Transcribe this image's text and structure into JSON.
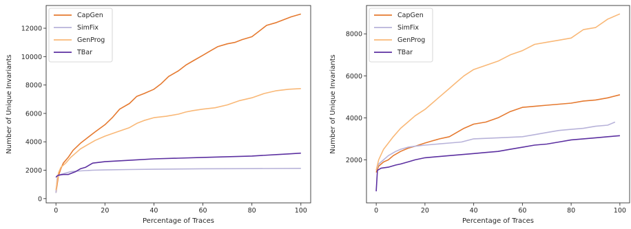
{
  "chart_data": [
    {
      "type": "line",
      "xlabel": "Percentage of Traces",
      "ylabel": "Number of Unique Invariants",
      "xlim": [
        -4,
        104
      ],
      "ylim": [
        -300,
        13600
      ],
      "xticks": [
        0,
        20,
        40,
        60,
        80,
        100
      ],
      "yticks": [
        0,
        2000,
        4000,
        6000,
        8000,
        10000,
        12000
      ],
      "legend_position": "upper-left",
      "grid": false,
      "series": [
        {
          "name": "CapGen",
          "color": "#e5792f",
          "x": [
            0,
            1,
            2,
            3,
            5,
            7,
            10,
            13,
            16,
            20,
            23,
            26,
            30,
            33,
            36,
            40,
            43,
            46,
            50,
            53,
            56,
            60,
            63,
            66,
            70,
            73,
            76,
            80,
            83,
            86,
            90,
            93,
            96,
            100
          ],
          "y": [
            400,
            1600,
            2100,
            2500,
            2900,
            3400,
            3900,
            4300,
            4700,
            5200,
            5700,
            6300,
            6700,
            7200,
            7400,
            7700,
            8100,
            8600,
            9000,
            9400,
            9700,
            10100,
            10400,
            10700,
            10900,
            11000,
            11200,
            11400,
            11800,
            12200,
            12400,
            12600,
            12800,
            13000
          ]
        },
        {
          "name": "SimFix",
          "color": "#b7b2d9",
          "x": [
            0,
            0.5,
            1,
            2,
            4,
            6,
            10,
            15,
            20,
            30,
            40,
            60,
            80,
            100
          ],
          "y": [
            400,
            1400,
            1600,
            1700,
            1800,
            1900,
            1950,
            2000,
            2020,
            2050,
            2070,
            2100,
            2110,
            2130
          ]
        },
        {
          "name": "GenProg",
          "color": "#f9b877",
          "x": [
            0,
            1,
            2,
            4,
            6,
            8,
            10,
            13,
            16,
            20,
            25,
            30,
            33,
            36,
            40,
            45,
            50,
            53,
            56,
            60,
            65,
            70,
            75,
            80,
            85,
            90,
            95,
            100
          ],
          "y": [
            600,
            1800,
            2200,
            2500,
            2900,
            3200,
            3500,
            3800,
            4100,
            4400,
            4700,
            5000,
            5300,
            5500,
            5700,
            5800,
            5950,
            6100,
            6200,
            6300,
            6400,
            6600,
            6900,
            7100,
            7400,
            7600,
            7700,
            7750
          ]
        },
        {
          "name": "TBar",
          "color": "#5b2fa0",
          "x": [
            0,
            0.5,
            1,
            3,
            5,
            8,
            10,
            12,
            15,
            20,
            25,
            30,
            40,
            50,
            60,
            70,
            80,
            90,
            95,
            100
          ],
          "y": [
            1500,
            1600,
            1650,
            1700,
            1700,
            1900,
            2100,
            2200,
            2500,
            2600,
            2650,
            2700,
            2800,
            2850,
            2900,
            2950,
            3000,
            3100,
            3150,
            3200
          ]
        }
      ]
    },
    {
      "type": "line",
      "xlabel": "Percentage of Traces",
      "ylabel": "Number of Unique Invariants",
      "xlim": [
        -4,
        104
      ],
      "ylim": [
        -50,
        9350
      ],
      "xticks": [
        0,
        20,
        40,
        60,
        80,
        100
      ],
      "yticks": [
        2000,
        4000,
        6000,
        8000
      ],
      "legend_position": "upper-left",
      "grid": false,
      "series": [
        {
          "name": "CapGen",
          "color": "#e5792f",
          "x": [
            0,
            1,
            3,
            5,
            7,
            10,
            13,
            16,
            20,
            23,
            26,
            30,
            33,
            36,
            40,
            45,
            50,
            55,
            60,
            65,
            70,
            75,
            80,
            85,
            90,
            95,
            100
          ],
          "y": [
            1400,
            1700,
            1900,
            2000,
            2200,
            2400,
            2550,
            2650,
            2800,
            2900,
            3000,
            3100,
            3300,
            3500,
            3700,
            3800,
            4000,
            4300,
            4500,
            4550,
            4600,
            4650,
            4700,
            4800,
            4850,
            4950,
            5100
          ]
        },
        {
          "name": "SimFix",
          "color": "#b7b2d9",
          "x": [
            0,
            1,
            3,
            5,
            8,
            10,
            13,
            16,
            20,
            25,
            30,
            35,
            40,
            50,
            60,
            65,
            70,
            75,
            80,
            85,
            90,
            95,
            98
          ],
          "y": [
            1500,
            1800,
            2000,
            2200,
            2400,
            2500,
            2600,
            2650,
            2700,
            2750,
            2800,
            2850,
            3000,
            3050,
            3100,
            3200,
            3300,
            3400,
            3450,
            3500,
            3600,
            3650,
            3800
          ]
        },
        {
          "name": "GenProg",
          "color": "#f9b877",
          "x": [
            0,
            1,
            3,
            5,
            7,
            10,
            13,
            16,
            20,
            23,
            26,
            30,
            33,
            36,
            40,
            45,
            50,
            55,
            60,
            65,
            70,
            75,
            80,
            85,
            90,
            95,
            100
          ],
          "y": [
            1500,
            2000,
            2500,
            2800,
            3100,
            3500,
            3800,
            4100,
            4400,
            4700,
            5000,
            5400,
            5700,
            6000,
            6300,
            6500,
            6700,
            7000,
            7200,
            7500,
            7600,
            7700,
            7800,
            8200,
            8300,
            8700,
            8950
          ]
        },
        {
          "name": "TBar",
          "color": "#5b2fa0",
          "x": [
            0,
            0.5,
            2,
            5,
            8,
            10,
            13,
            16,
            20,
            25,
            30,
            35,
            40,
            45,
            50,
            55,
            60,
            65,
            70,
            75,
            80,
            85,
            90,
            95,
            100
          ],
          "y": [
            500,
            1500,
            1600,
            1650,
            1750,
            1800,
            1900,
            2000,
            2100,
            2150,
            2200,
            2250,
            2300,
            2350,
            2400,
            2500,
            2600,
            2700,
            2750,
            2850,
            2950,
            3000,
            3050,
            3100,
            3150
          ]
        }
      ]
    }
  ]
}
